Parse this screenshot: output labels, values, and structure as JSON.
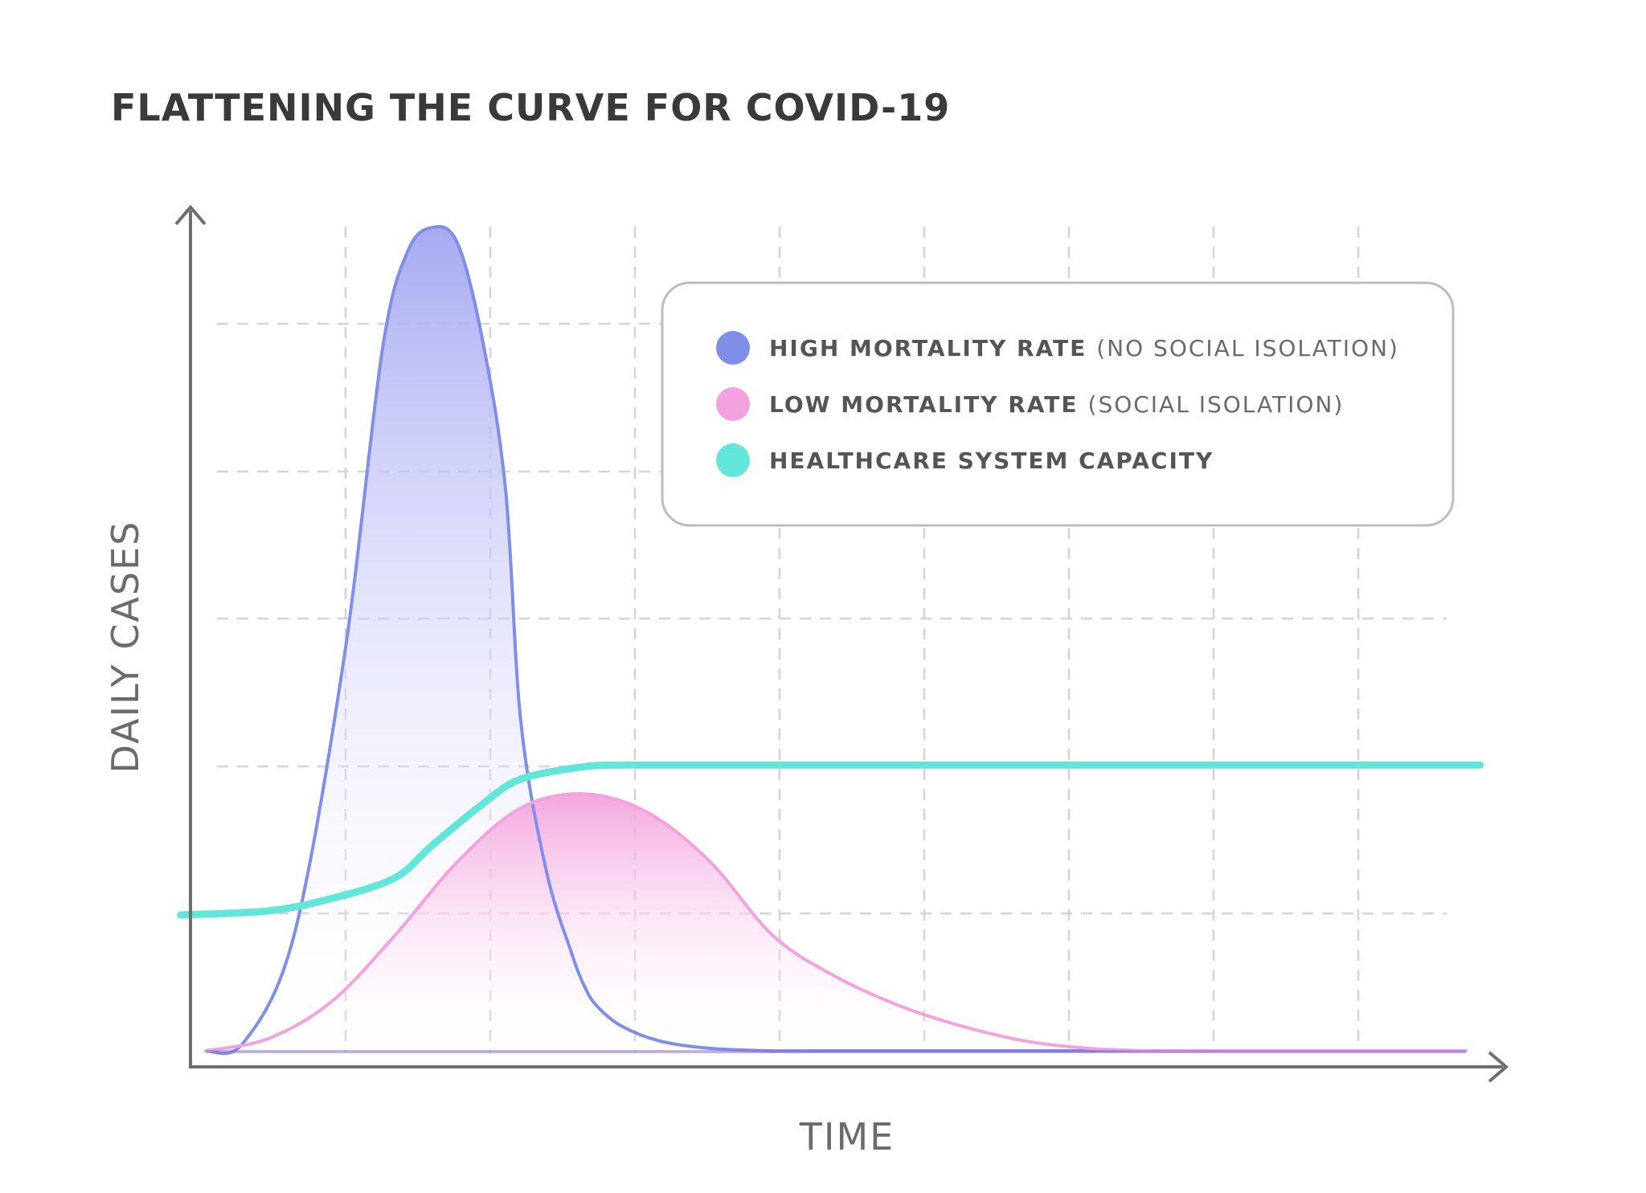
{
  "chart_data": {
    "type": "area",
    "title": "FLATTENING THE CURVE FOR COVID-19",
    "xlabel": "TIME",
    "ylabel": "DAILY CASES",
    "xlim": [
      0,
      100
    ],
    "ylim": [
      0,
      100
    ],
    "grid": true,
    "legend_position": "top-right",
    "series": [
      {
        "name": "HIGH MORTALITY RATE",
        "qualifier": "(NO SOCIAL ISOLATION)",
        "color": "#7f8ee6",
        "fill": true,
        "x": [
          0,
          3,
          7,
          11,
          14,
          16,
          18,
          20,
          22,
          23.8,
          25,
          27,
          29,
          30,
          31,
          33,
          36,
          40,
          45,
          50,
          100
        ],
        "y": [
          0,
          1,
          14,
          48,
          85,
          97,
          100,
          98,
          86,
          68,
          40,
          22,
          12,
          8,
          5.5,
          3,
          1.2,
          0.3,
          0,
          0,
          0
        ]
      },
      {
        "name": "LOW MORTALITY RATE",
        "qualifier": "(SOCIAL ISOLATION)",
        "color": "#f3a2dd",
        "fill": true,
        "x": [
          0,
          5,
          10,
          15,
          20,
          25,
          30,
          35,
          40,
          45,
          50,
          55,
          60,
          65,
          70,
          75,
          80,
          85,
          90,
          100
        ],
        "y": [
          0,
          1.5,
          6,
          14,
          23,
          29.5,
          31.2,
          29,
          23,
          14,
          9,
          5.5,
          3,
          1.2,
          0.3,
          0,
          0,
          0,
          0,
          0
        ]
      },
      {
        "name": "HEALTHCARE SYSTEM CAPACITY",
        "qualifier": "",
        "color": "#62e6d9",
        "fill": false,
        "x": [
          -2,
          5,
          10,
          15,
          18,
          22,
          25,
          30,
          33,
          35,
          40,
          50,
          60,
          70,
          80,
          90,
          100,
          101
        ],
        "y": [
          16.5,
          17,
          18.5,
          21,
          25,
          30,
          33,
          34.5,
          34.7,
          34.7,
          34.7,
          34.7,
          34.7,
          34.7,
          34.7,
          34.7,
          34.7,
          34.7
        ]
      }
    ]
  }
}
